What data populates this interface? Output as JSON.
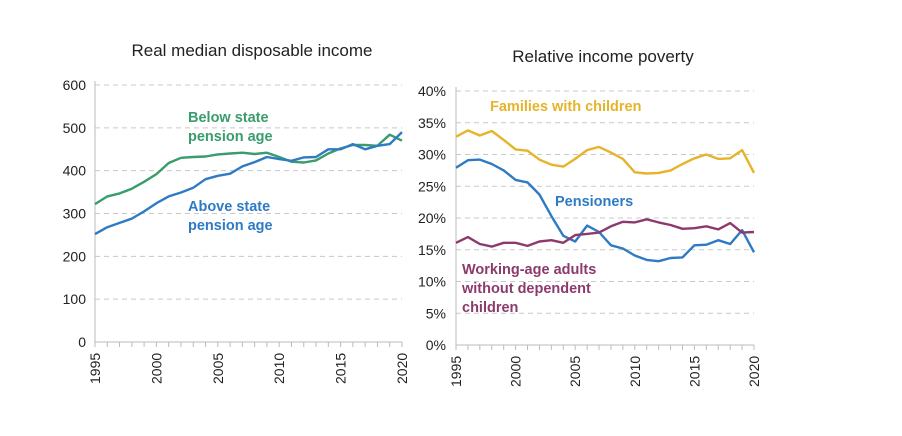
{
  "chart_data": [
    {
      "type": "line",
      "title": "Real median disposable income",
      "x": [
        1995,
        1996,
        1997,
        1998,
        1999,
        2000,
        2001,
        2002,
        2003,
        2004,
        2005,
        2006,
        2007,
        2008,
        2009,
        2010,
        2011,
        2012,
        2013,
        2014,
        2015,
        2016,
        2017,
        2018,
        2019,
        2020
      ],
      "xticks": [
        "1995",
        "2000",
        "2005",
        "2010",
        "2015",
        "2020"
      ],
      "yticks": [
        "0",
        "100",
        "200",
        "300",
        "400",
        "500",
        "600"
      ],
      "ylim": [
        0,
        600
      ],
      "grid": true,
      "series": [
        {
          "name": "Below state pension age",
          "label_lines": [
            "Below state",
            "pension age"
          ],
          "color": "#3a9c6c",
          "values": [
            322,
            340,
            347,
            358,
            374,
            392,
            418,
            430,
            432,
            433,
            438,
            440,
            442,
            439,
            442,
            432,
            421,
            419,
            424,
            440,
            452,
            460,
            460,
            458,
            484,
            470
          ]
        },
        {
          "name": "Above state pension age",
          "label_lines": [
            "Above state",
            "pension age"
          ],
          "color": "#2e7bc4",
          "values": [
            252,
            268,
            278,
            288,
            305,
            324,
            340,
            349,
            360,
            380,
            388,
            393,
            410,
            420,
            432,
            427,
            423,
            431,
            432,
            450,
            450,
            462,
            450,
            458,
            462,
            490
          ]
        }
      ]
    },
    {
      "type": "line",
      "title": "Relative income poverty",
      "x": [
        1995,
        1996,
        1997,
        1998,
        1999,
        2000,
        2001,
        2002,
        2003,
        2004,
        2005,
        2006,
        2007,
        2008,
        2009,
        2010,
        2011,
        2012,
        2013,
        2014,
        2015,
        2016,
        2017,
        2018,
        2019,
        2020
      ],
      "xticks": [
        "1995",
        "2000",
        "2005",
        "2010",
        "2015",
        "2020"
      ],
      "yticks": [
        "0%",
        "5%",
        "10%",
        "15%",
        "20%",
        "25%",
        "30%",
        "35%",
        "40%"
      ],
      "ylim": [
        0,
        40
      ],
      "grid": true,
      "series": [
        {
          "name": "Families with children",
          "label_lines": [
            "Families with children"
          ],
          "color": "#e6b329",
          "values": [
            32.8,
            33.8,
            33.0,
            33.7,
            32.3,
            30.8,
            30.6,
            29.2,
            28.4,
            28.1,
            29.3,
            30.7,
            31.2,
            30.3,
            29.3,
            27.2,
            27.0,
            27.1,
            27.5,
            28.5,
            29.4,
            30.0,
            29.3,
            29.4,
            30.7,
            27.1
          ]
        },
        {
          "name": "Pensioners",
          "label_lines": [
            "Pensioners"
          ],
          "color": "#2e7bc4",
          "values": [
            27.9,
            29.1,
            29.2,
            28.5,
            27.5,
            26.0,
            25.6,
            23.7,
            20.3,
            17.2,
            16.3,
            18.8,
            17.8,
            15.7,
            15.2,
            14.1,
            13.4,
            13.2,
            13.7,
            13.8,
            15.7,
            15.8,
            16.5,
            15.9,
            18.1,
            14.6
          ]
        },
        {
          "name": "Working-age adults without dependent children",
          "label_lines": [
            "Working-age adults",
            "without dependent",
            "children"
          ],
          "color": "#8c3a6c",
          "values": [
            16.1,
            17.0,
            15.9,
            15.5,
            16.1,
            16.1,
            15.6,
            16.3,
            16.5,
            16.1,
            17.3,
            17.5,
            17.7,
            18.7,
            19.4,
            19.3,
            19.8,
            19.3,
            18.9,
            18.3,
            18.4,
            18.7,
            18.2,
            19.2,
            17.7,
            17.8
          ]
        }
      ]
    }
  ]
}
